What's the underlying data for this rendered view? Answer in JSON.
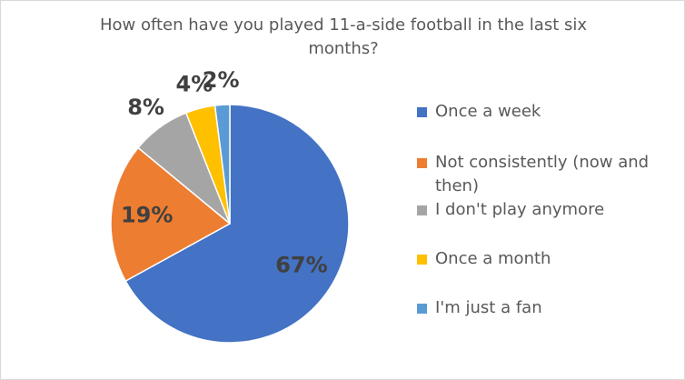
{
  "chart_data": {
    "type": "pie",
    "title": "How often have you played 11-a-side football in the last six months?",
    "categories": [
      "Once a week",
      "Not consistently (now and then)",
      "I don't play anymore",
      "Once a month",
      "I'm just a fan"
    ],
    "values": [
      67,
      19,
      8,
      4,
      2
    ],
    "value_labels": [
      "67%",
      "19%",
      "8%",
      "4%",
      "2%"
    ],
    "colors": [
      "#4472c4",
      "#ed7d31",
      "#a5a5a5",
      "#ffc000",
      "#5b9bd5"
    ],
    "legend": "right"
  }
}
